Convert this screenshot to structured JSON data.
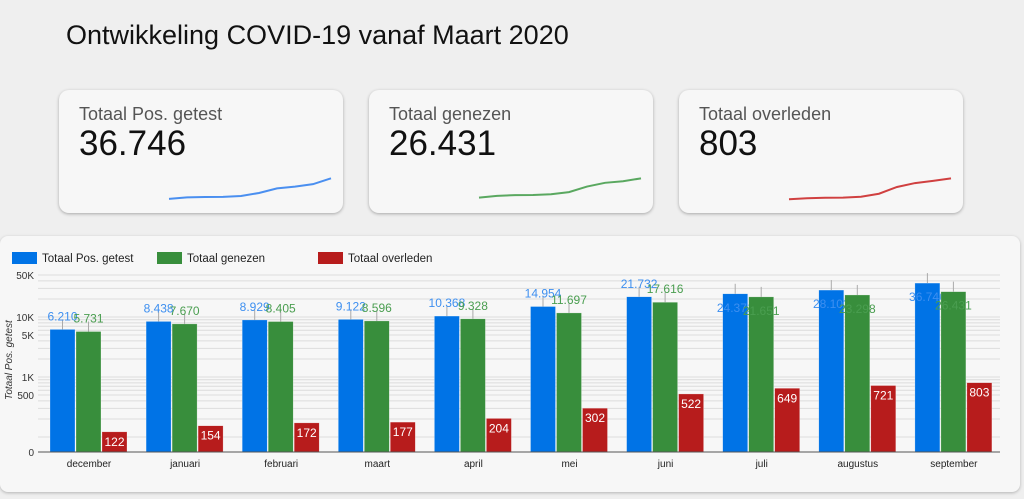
{
  "title": "Ontwikkeling COVID-19 vanaf Maart 2020",
  "scorecards": [
    {
      "label": "Totaal Pos. getest",
      "value": "36.746",
      "color": "#4a8ff0"
    },
    {
      "label": "Totaal genezen",
      "value": "26.431",
      "color": "#5aa860"
    },
    {
      "label": "Totaal overleden",
      "value": "803",
      "color": "#d04040"
    }
  ],
  "chart_data": {
    "type": "bar",
    "title": "",
    "xlabel": "",
    "ylabel": "Totaal Pos. getest",
    "yscale": "log",
    "ylim": [
      0,
      50000
    ],
    "yticks": [
      {
        "v": 0,
        "label": "0"
      },
      {
        "v": 500,
        "label": "500"
      },
      {
        "v": 1000,
        "label": "1K"
      },
      {
        "v": 5000,
        "label": "5K"
      },
      {
        "v": 10000,
        "label": "10K"
      },
      {
        "v": 50000,
        "label": "50K"
      }
    ],
    "legend_position": "top-left",
    "categories": [
      "december",
      "januari",
      "februari",
      "maart",
      "april",
      "mei",
      "juni",
      "juli",
      "augustus",
      "september"
    ],
    "series": [
      {
        "name": "Totaal Pos. getest",
        "color": "#0073e6",
        "label_color": "#3d8ff0",
        "values": [
          6210,
          8438,
          8929,
          9122,
          10368,
          14954,
          21732,
          24371,
          28103,
          36746
        ]
      },
      {
        "name": "Totaal genezen",
        "color": "#388e3c",
        "label_color": "#4a9e50",
        "values": [
          5731,
          7670,
          8405,
          8596,
          9328,
          11697,
          17616,
          21651,
          23298,
          26431
        ]
      },
      {
        "name": "Totaal overleden",
        "color": "#b71c1c",
        "label_color": "#ffffff",
        "values": [
          122,
          154,
          172,
          177,
          204,
          302,
          522,
          649,
          721,
          803
        ]
      }
    ]
  }
}
